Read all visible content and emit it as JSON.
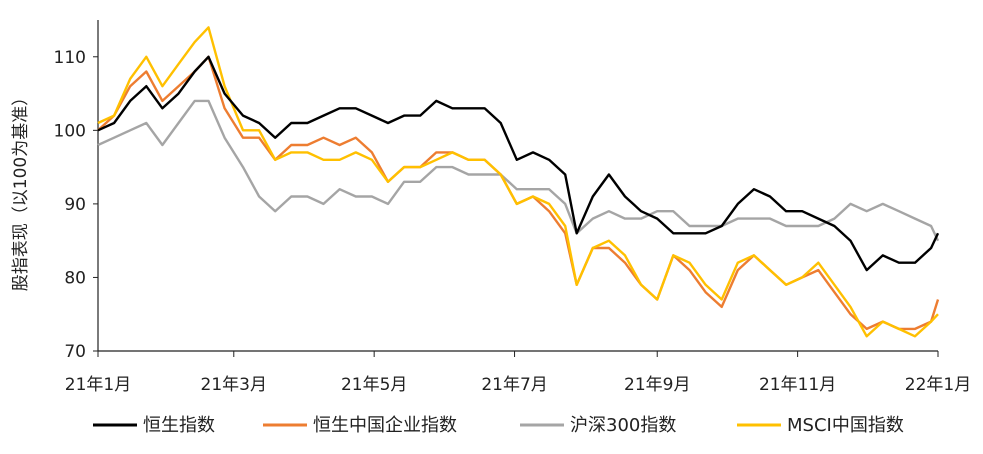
{
  "chart_data": {
    "type": "line",
    "ylabel": "股指表现（以100为基准）",
    "ylim": [
      70,
      115
    ],
    "yticks": [
      70,
      80,
      90,
      100,
      110
    ],
    "x_axis": {
      "range": [
        "2021-01-01",
        "2022-01-01"
      ],
      "tick_labels": [
        "21年1月",
        "21年3月",
        "21年5月",
        "21年7月",
        "21年9月",
        "21年11月",
        "22年1月"
      ],
      "tick_dates": [
        "2021-01-01",
        "2021-03-01",
        "2021-05-01",
        "2021-07-01",
        "2021-09-01",
        "2021-11-01",
        "2022-01-01"
      ]
    },
    "grid": false,
    "legend": "bottom",
    "series": [
      {
        "name": "恒生指数",
        "color": "#000000",
        "points": [
          [
            "2021-01-01",
            100
          ],
          [
            "2021-01-08",
            101
          ],
          [
            "2021-01-15",
            104
          ],
          [
            "2021-01-22",
            106
          ],
          [
            "2021-01-29",
            103
          ],
          [
            "2021-02-05",
            105
          ],
          [
            "2021-02-12",
            108
          ],
          [
            "2021-02-18",
            110
          ],
          [
            "2021-02-25",
            105
          ],
          [
            "2021-03-05",
            102
          ],
          [
            "2021-03-12",
            101
          ],
          [
            "2021-03-19",
            99
          ],
          [
            "2021-03-26",
            101
          ],
          [
            "2021-04-02",
            101
          ],
          [
            "2021-04-09",
            102
          ],
          [
            "2021-04-16",
            103
          ],
          [
            "2021-04-23",
            103
          ],
          [
            "2021-04-30",
            102
          ],
          [
            "2021-05-07",
            101
          ],
          [
            "2021-05-14",
            102
          ],
          [
            "2021-05-21",
            102
          ],
          [
            "2021-05-28",
            104
          ],
          [
            "2021-06-04",
            103
          ],
          [
            "2021-06-11",
            103
          ],
          [
            "2021-06-18",
            103
          ],
          [
            "2021-06-25",
            101
          ],
          [
            "2021-07-02",
            96
          ],
          [
            "2021-07-09",
            97
          ],
          [
            "2021-07-16",
            96
          ],
          [
            "2021-07-23",
            94
          ],
          [
            "2021-07-28",
            86
          ],
          [
            "2021-08-04",
            91
          ],
          [
            "2021-08-11",
            94
          ],
          [
            "2021-08-18",
            91
          ],
          [
            "2021-08-25",
            89
          ],
          [
            "2021-09-01",
            88
          ],
          [
            "2021-09-08",
            86
          ],
          [
            "2021-09-15",
            86
          ],
          [
            "2021-09-22",
            86
          ],
          [
            "2021-09-29",
            87
          ],
          [
            "2021-10-06",
            90
          ],
          [
            "2021-10-13",
            92
          ],
          [
            "2021-10-20",
            91
          ],
          [
            "2021-10-27",
            89
          ],
          [
            "2021-11-03",
            89
          ],
          [
            "2021-11-10",
            88
          ],
          [
            "2021-11-17",
            87
          ],
          [
            "2021-11-24",
            85
          ],
          [
            "2021-12-01",
            81
          ],
          [
            "2021-12-08",
            83
          ],
          [
            "2021-12-15",
            82
          ],
          [
            "2021-12-22",
            82
          ],
          [
            "2021-12-29",
            84
          ],
          [
            "2022-01-01",
            86
          ]
        ]
      },
      {
        "name": "恒生中国企业指数",
        "color": "#ED7D31",
        "points": [
          [
            "2021-01-01",
            100
          ],
          [
            "2021-01-08",
            102
          ],
          [
            "2021-01-15",
            106
          ],
          [
            "2021-01-22",
            108
          ],
          [
            "2021-01-29",
            104
          ],
          [
            "2021-02-05",
            106
          ],
          [
            "2021-02-12",
            108
          ],
          [
            "2021-02-18",
            110
          ],
          [
            "2021-02-25",
            103
          ],
          [
            "2021-03-05",
            99
          ],
          [
            "2021-03-12",
            99
          ],
          [
            "2021-03-19",
            96
          ],
          [
            "2021-03-26",
            98
          ],
          [
            "2021-04-02",
            98
          ],
          [
            "2021-04-09",
            99
          ],
          [
            "2021-04-16",
            98
          ],
          [
            "2021-04-23",
            99
          ],
          [
            "2021-04-30",
            97
          ],
          [
            "2021-05-07",
            93
          ],
          [
            "2021-05-14",
            95
          ],
          [
            "2021-05-21",
            95
          ],
          [
            "2021-05-28",
            97
          ],
          [
            "2021-06-04",
            97
          ],
          [
            "2021-06-11",
            96
          ],
          [
            "2021-06-18",
            96
          ],
          [
            "2021-06-25",
            94
          ],
          [
            "2021-07-02",
            90
          ],
          [
            "2021-07-09",
            91
          ],
          [
            "2021-07-16",
            89
          ],
          [
            "2021-07-23",
            86
          ],
          [
            "2021-07-28",
            79
          ],
          [
            "2021-08-04",
            84
          ],
          [
            "2021-08-11",
            84
          ],
          [
            "2021-08-18",
            82
          ],
          [
            "2021-08-25",
            79
          ],
          [
            "2021-09-01",
            77
          ],
          [
            "2021-09-08",
            83
          ],
          [
            "2021-09-15",
            81
          ],
          [
            "2021-09-22",
            78
          ],
          [
            "2021-09-29",
            76
          ],
          [
            "2021-10-06",
            81
          ],
          [
            "2021-10-13",
            83
          ],
          [
            "2021-10-20",
            81
          ],
          [
            "2021-10-27",
            79
          ],
          [
            "2021-11-03",
            80
          ],
          [
            "2021-11-10",
            81
          ],
          [
            "2021-11-17",
            78
          ],
          [
            "2021-11-24",
            75
          ],
          [
            "2021-12-01",
            73
          ],
          [
            "2021-12-08",
            74
          ],
          [
            "2021-12-15",
            73
          ],
          [
            "2021-12-22",
            73
          ],
          [
            "2021-12-29",
            74
          ],
          [
            "2022-01-01",
            77
          ]
        ]
      },
      {
        "name": "沪深300指数",
        "color": "#A5A5A5",
        "points": [
          [
            "2021-01-01",
            98
          ],
          [
            "2021-01-08",
            99
          ],
          [
            "2021-01-15",
            100
          ],
          [
            "2021-01-22",
            101
          ],
          [
            "2021-01-29",
            98
          ],
          [
            "2021-02-05",
            101
          ],
          [
            "2021-02-12",
            104
          ],
          [
            "2021-02-18",
            104
          ],
          [
            "2021-02-25",
            99
          ],
          [
            "2021-03-05",
            95
          ],
          [
            "2021-03-12",
            91
          ],
          [
            "2021-03-19",
            89
          ],
          [
            "2021-03-26",
            91
          ],
          [
            "2021-04-02",
            91
          ],
          [
            "2021-04-09",
            90
          ],
          [
            "2021-04-16",
            92
          ],
          [
            "2021-04-23",
            91
          ],
          [
            "2021-04-30",
            91
          ],
          [
            "2021-05-07",
            90
          ],
          [
            "2021-05-14",
            93
          ],
          [
            "2021-05-21",
            93
          ],
          [
            "2021-05-28",
            95
          ],
          [
            "2021-06-04",
            95
          ],
          [
            "2021-06-11",
            94
          ],
          [
            "2021-06-18",
            94
          ],
          [
            "2021-06-25",
            94
          ],
          [
            "2021-07-02",
            92
          ],
          [
            "2021-07-09",
            92
          ],
          [
            "2021-07-16",
            92
          ],
          [
            "2021-07-23",
            90
          ],
          [
            "2021-07-28",
            86
          ],
          [
            "2021-08-04",
            88
          ],
          [
            "2021-08-11",
            89
          ],
          [
            "2021-08-18",
            88
          ],
          [
            "2021-08-25",
            88
          ],
          [
            "2021-09-01",
            89
          ],
          [
            "2021-09-08",
            89
          ],
          [
            "2021-09-15",
            87
          ],
          [
            "2021-09-22",
            87
          ],
          [
            "2021-09-29",
            87
          ],
          [
            "2021-10-06",
            88
          ],
          [
            "2021-10-13",
            88
          ],
          [
            "2021-10-20",
            88
          ],
          [
            "2021-10-27",
            87
          ],
          [
            "2021-11-03",
            87
          ],
          [
            "2021-11-10",
            87
          ],
          [
            "2021-11-17",
            88
          ],
          [
            "2021-11-24",
            90
          ],
          [
            "2021-12-01",
            89
          ],
          [
            "2021-12-08",
            90
          ],
          [
            "2021-12-15",
            89
          ],
          [
            "2021-12-22",
            88
          ],
          [
            "2021-12-29",
            87
          ],
          [
            "2022-01-01",
            85
          ]
        ]
      },
      {
        "name": "MSCI中国指数",
        "color": "#FFC000",
        "points": [
          [
            "2021-01-01",
            101
          ],
          [
            "2021-01-08",
            102
          ],
          [
            "2021-01-15",
            107
          ],
          [
            "2021-01-22",
            110
          ],
          [
            "2021-01-29",
            106
          ],
          [
            "2021-02-05",
            109
          ],
          [
            "2021-02-12",
            112
          ],
          [
            "2021-02-18",
            114
          ],
          [
            "2021-02-25",
            106
          ],
          [
            "2021-03-05",
            100
          ],
          [
            "2021-03-12",
            100
          ],
          [
            "2021-03-19",
            96
          ],
          [
            "2021-03-26",
            97
          ],
          [
            "2021-04-02",
            97
          ],
          [
            "2021-04-09",
            96
          ],
          [
            "2021-04-16",
            96
          ],
          [
            "2021-04-23",
            97
          ],
          [
            "2021-04-30",
            96
          ],
          [
            "2021-05-07",
            93
          ],
          [
            "2021-05-14",
            95
          ],
          [
            "2021-05-21",
            95
          ],
          [
            "2021-05-28",
            96
          ],
          [
            "2021-06-04",
            97
          ],
          [
            "2021-06-11",
            96
          ],
          [
            "2021-06-18",
            96
          ],
          [
            "2021-06-25",
            94
          ],
          [
            "2021-07-02",
            90
          ],
          [
            "2021-07-09",
            91
          ],
          [
            "2021-07-16",
            90
          ],
          [
            "2021-07-23",
            87
          ],
          [
            "2021-07-28",
            79
          ],
          [
            "2021-08-04",
            84
          ],
          [
            "2021-08-11",
            85
          ],
          [
            "2021-08-18",
            83
          ],
          [
            "2021-08-25",
            79
          ],
          [
            "2021-09-01",
            77
          ],
          [
            "2021-09-08",
            83
          ],
          [
            "2021-09-15",
            82
          ],
          [
            "2021-09-22",
            79
          ],
          [
            "2021-09-29",
            77
          ],
          [
            "2021-10-06",
            82
          ],
          [
            "2021-10-13",
            83
          ],
          [
            "2021-10-20",
            81
          ],
          [
            "2021-10-27",
            79
          ],
          [
            "2021-11-03",
            80
          ],
          [
            "2021-11-10",
            82
          ],
          [
            "2021-11-17",
            79
          ],
          [
            "2021-11-24",
            76
          ],
          [
            "2021-12-01",
            72
          ],
          [
            "2021-12-08",
            74
          ],
          [
            "2021-12-15",
            73
          ],
          [
            "2021-12-22",
            72
          ],
          [
            "2021-12-29",
            74
          ],
          [
            "2022-01-01",
            75
          ]
        ]
      }
    ]
  }
}
